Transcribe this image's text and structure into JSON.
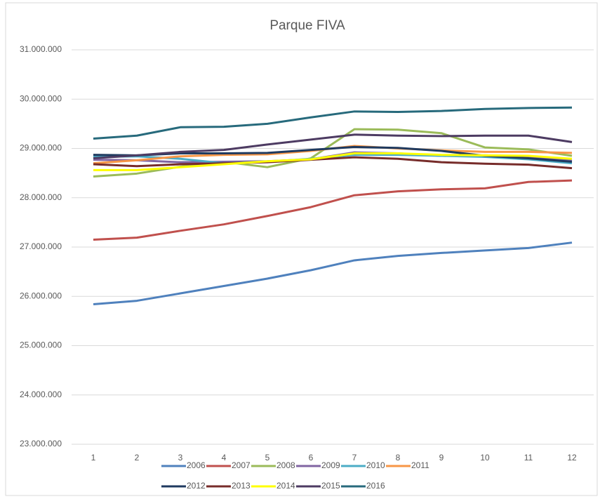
{
  "chart_data": {
    "type": "line",
    "title": "Parque FIVA",
    "categories": [
      "1",
      "2",
      "3",
      "4",
      "5",
      "6",
      "7",
      "8",
      "9",
      "10",
      "11",
      "12"
    ],
    "ylim": [
      23000000,
      31000000
    ],
    "yticks": [
      {
        "value": 23000000,
        "label": "23.000.000"
      },
      {
        "value": 24000000,
        "label": "24.000.000"
      },
      {
        "value": 25000000,
        "label": "25.000.000"
      },
      {
        "value": 26000000,
        "label": "26.000.000"
      },
      {
        "value": 27000000,
        "label": "27.000.000"
      },
      {
        "value": 28000000,
        "label": "28.000.000"
      },
      {
        "value": 29000000,
        "label": "29.000.000"
      },
      {
        "value": 30000000,
        "label": "30.000.000"
      },
      {
        "value": 31000000,
        "label": "31.000.000"
      }
    ],
    "grid": true,
    "legend": "bottom",
    "series": [
      {
        "name": "2006",
        "color": "#4f81bd",
        "values": [
          25840000,
          25910000,
          26060000,
          26210000,
          26360000,
          26530000,
          26730000,
          26820000,
          26880000,
          26930000,
          26980000,
          27090000
        ]
      },
      {
        "name": "2007",
        "color": "#c0504d",
        "values": [
          27150000,
          27190000,
          27330000,
          27460000,
          27630000,
          27810000,
          28050000,
          28130000,
          28170000,
          28190000,
          28320000,
          28350000
        ]
      },
      {
        "name": "2008",
        "color": "#9bbb59",
        "values": [
          28430000,
          28490000,
          28630000,
          28730000,
          28620000,
          28800000,
          29390000,
          29380000,
          29310000,
          29020000,
          28980000,
          28850000
        ]
      },
      {
        "name": "2009",
        "color": "#8064a2",
        "values": [
          28770000,
          28760000,
          28720000,
          28730000,
          28740000,
          28780000,
          28920000,
          28900000,
          28850000,
          28860000,
          28840000,
          28750000
        ]
      },
      {
        "name": "2010",
        "color": "#4bacc6",
        "values": [
          28830000,
          28840000,
          28790000,
          28700000,
          28730000,
          28790000,
          28870000,
          28870000,
          28850000,
          28830000,
          28780000,
          28700000
        ]
      },
      {
        "name": "2011",
        "color": "#f79646",
        "values": [
          28700000,
          28760000,
          28840000,
          28870000,
          28880000,
          28950000,
          29050000,
          29000000,
          28960000,
          28930000,
          28930000,
          28910000
        ]
      },
      {
        "name": "2012",
        "color": "#1f3a5f",
        "values": [
          28870000,
          28860000,
          28900000,
          28900000,
          28910000,
          28970000,
          29030000,
          29010000,
          28950000,
          28850000,
          28800000,
          28730000
        ]
      },
      {
        "name": "2013",
        "color": "#772c2a",
        "values": [
          28680000,
          28640000,
          28680000,
          28700000,
          28720000,
          28770000,
          28820000,
          28790000,
          28720000,
          28690000,
          28670000,
          28600000
        ]
      },
      {
        "name": "2014",
        "color": "#ffff00",
        "values": [
          28560000,
          28560000,
          28620000,
          28680000,
          28740000,
          28780000,
          28900000,
          28900000,
          28870000,
          28860000,
          28850000,
          28790000
        ]
      },
      {
        "name": "2015",
        "color": "#4d3b62",
        "values": [
          28800000,
          28860000,
          28930000,
          28970000,
          29080000,
          29180000,
          29280000,
          29260000,
          29250000,
          29260000,
          29260000,
          29130000
        ]
      },
      {
        "name": "2016",
        "color": "#276a7c",
        "values": [
          29200000,
          29260000,
          29430000,
          29440000,
          29500000,
          29630000,
          29750000,
          29740000,
          29760000,
          29800000,
          29820000,
          29830000
        ]
      }
    ]
  }
}
